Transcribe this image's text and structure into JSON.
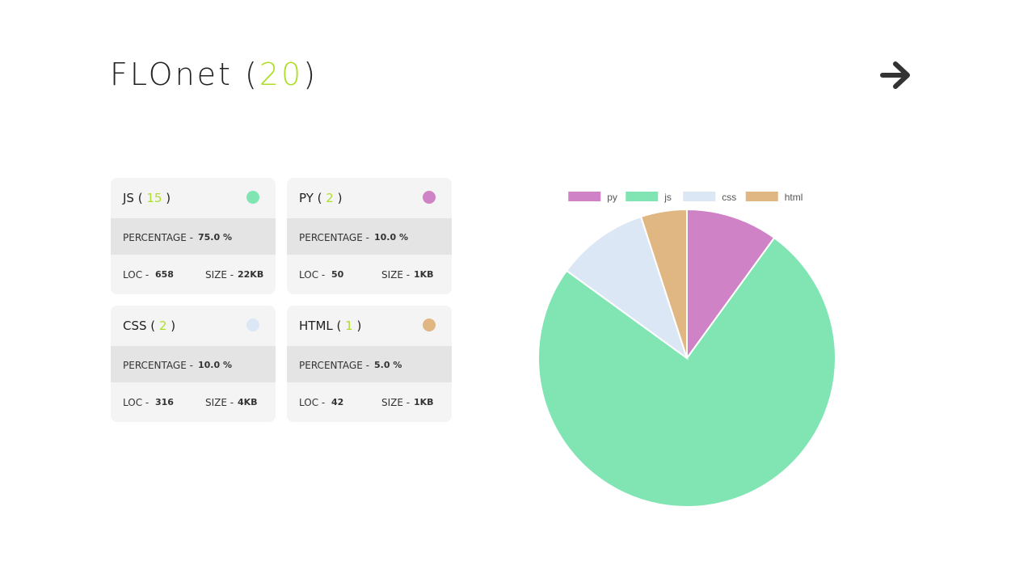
{
  "header": {
    "app_name": "FLOnet",
    "paren_open": "(",
    "total": "20",
    "paren_close": ")"
  },
  "cards": [
    {
      "name": "JS",
      "count": "15",
      "color": "#80e5b3",
      "percentage_label": "PERCENTAGE -",
      "percentage": "75.0 %",
      "loc_label": "LOC -",
      "loc": "658",
      "size_label": "SIZE -",
      "size": "22KB"
    },
    {
      "name": "PY",
      "count": "2",
      "color": "#cf82c6",
      "percentage_label": "PERCENTAGE -",
      "percentage": "10.0 %",
      "loc_label": "LOC -",
      "loc": "50",
      "size_label": "SIZE -",
      "size": "1KB"
    },
    {
      "name": "CSS",
      "count": "2",
      "color": "#dbe7f4",
      "percentage_label": "PERCENTAGE -",
      "percentage": "10.0 %",
      "loc_label": "LOC -",
      "loc": "316",
      "size_label": "SIZE -",
      "size": "4KB"
    },
    {
      "name": "HTML",
      "count": "1",
      "color": "#e0b682",
      "percentage_label": "PERCENTAGE -",
      "percentage": "5.0 %",
      "loc_label": "LOC -",
      "loc": "42",
      "size_label": "SIZE -",
      "size": "1KB"
    }
  ],
  "chart_data": {
    "type": "pie",
    "categories": [
      "py",
      "js",
      "css",
      "html"
    ],
    "values": [
      2,
      15,
      2,
      1
    ],
    "colors": [
      "#cf82c6",
      "#80e5b3",
      "#dbe7f4",
      "#e0b682"
    ],
    "legend": "top",
    "title": ""
  }
}
